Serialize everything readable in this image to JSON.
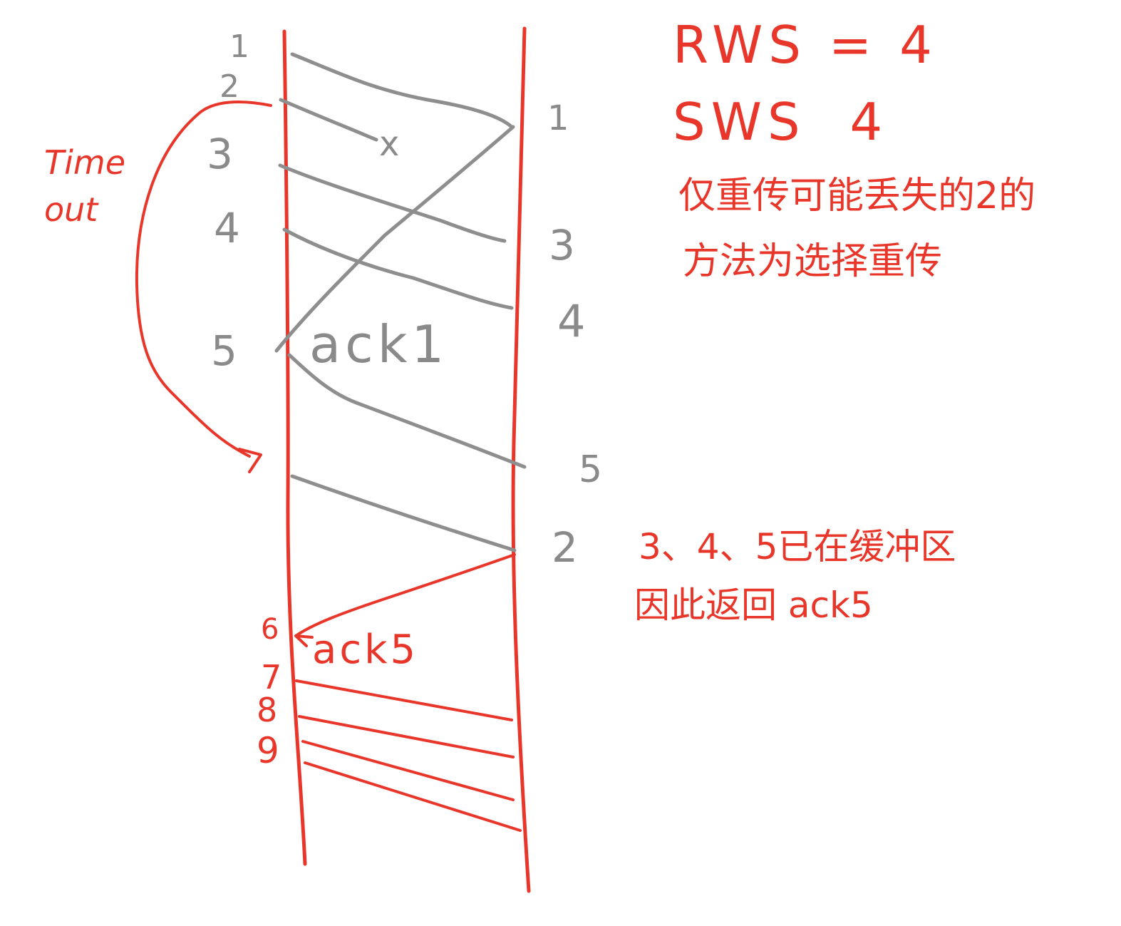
{
  "sender_labels": [
    "1",
    "2",
    "3",
    "4",
    "5"
  ],
  "receiver_labels": [
    "1",
    "3",
    "4",
    "5",
    "2"
  ],
  "lost_mark": "x",
  "ack_gray": "ack1",
  "timeout_label": [
    "Time",
    "out"
  ],
  "ack_red": "ack5",
  "new_seq": [
    "6",
    "7",
    "8",
    "9"
  ],
  "rws": "RWS = 4",
  "sws": "SWS  4",
  "note1": [
    "仅重传可能丢失的2的",
    "方法为选择重传"
  ],
  "note2": [
    "3、4、5已在缓冲区",
    "因此返回 ack5"
  ],
  "colors": {
    "red": "#e8372a",
    "gray": "#8e8e8e"
  }
}
